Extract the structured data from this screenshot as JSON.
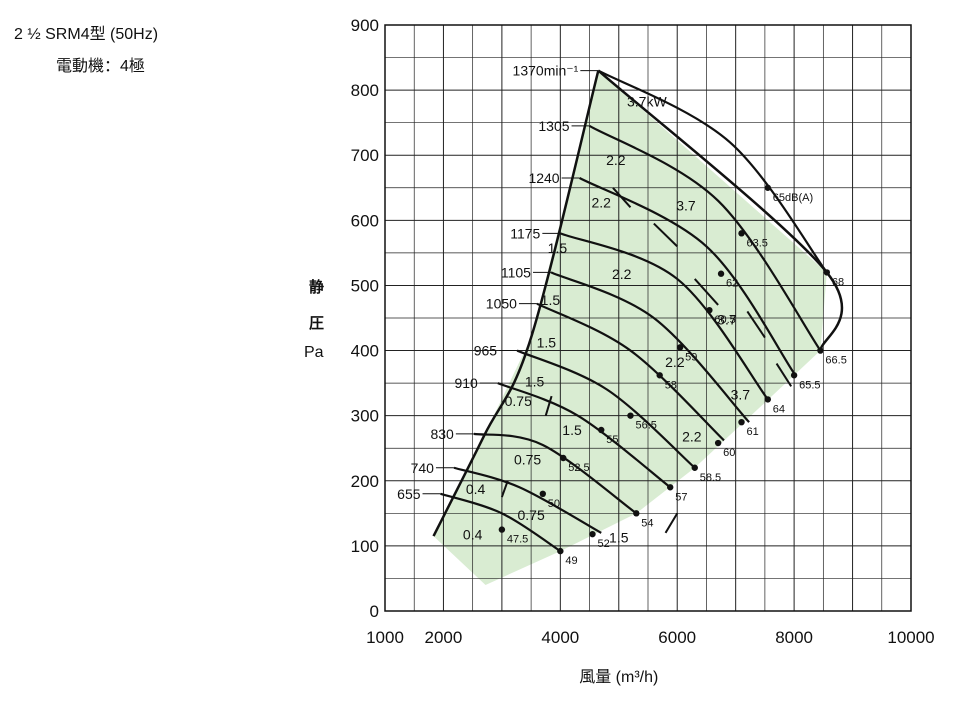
{
  "header": {
    "model": "2 ½ SRM4型 (50Hz)",
    "motor": "電動機：4極"
  },
  "chart_data": {
    "type": "line",
    "xlabel": "風量 (m³/h)",
    "ylabel": [
      "静",
      "圧",
      "Pa"
    ],
    "xlim": [
      1000,
      10000
    ],
    "ylim": [
      0,
      900
    ],
    "xticks": [
      1000,
      2000,
      4000,
      6000,
      8000,
      10000
    ],
    "yticks": [
      0,
      100,
      200,
      300,
      400,
      500,
      600,
      700,
      800,
      900
    ],
    "grid": true,
    "fill_color": "#d9ecd2",
    "curves": [
      {
        "name": "655",
        "points": [
          [
            1950,
            180
          ],
          [
            3000,
            150
          ],
          [
            4000,
            92
          ]
        ]
      },
      {
        "name": "740",
        "points": [
          [
            2180,
            220
          ],
          [
            3300,
            190
          ],
          [
            4700,
            120
          ]
        ]
      },
      {
        "name": "830",
        "points": [
          [
            2520,
            272
          ],
          [
            3700,
            255
          ],
          [
            5300,
            150
          ]
        ]
      },
      {
        "name": "910",
        "points": [
          [
            2930,
            350
          ],
          [
            4300,
            300
          ],
          [
            5880,
            190
          ]
        ]
      },
      {
        "name": "965",
        "points": [
          [
            3260,
            400
          ],
          [
            4800,
            340
          ],
          [
            6300,
            220
          ]
        ]
      },
      {
        "name": "1050",
        "points": [
          [
            3600,
            472
          ],
          [
            5200,
            400
          ],
          [
            6800,
            262
          ]
        ]
      },
      {
        "name": "1105",
        "points": [
          [
            3840,
            520
          ],
          [
            5600,
            450
          ],
          [
            7230,
            290
          ]
        ]
      },
      {
        "name": "1175",
        "points": [
          [
            4000,
            580
          ],
          [
            6000,
            510
          ],
          [
            7550,
            325
          ]
        ]
      },
      {
        "name": "1240",
        "points": [
          [
            4330,
            665
          ],
          [
            6500,
            560
          ],
          [
            8000,
            365
          ]
        ]
      },
      {
        "name": "1305",
        "points": [
          [
            4500,
            745
          ],
          [
            6700,
            630
          ],
          [
            8450,
            400
          ]
        ]
      },
      {
        "name": "1370min⁻¹",
        "points": [
          [
            4650,
            830
          ],
          [
            6900,
            720
          ],
          [
            8560,
            520
          ]
        ]
      }
    ],
    "envelope": {
      "left": [
        [
          1830,
          115
        ],
        [
          2700,
          270
        ],
        [
          3500,
          420
        ],
        [
          4650,
          830
        ]
      ],
      "right": [
        [
          4650,
          830
        ],
        [
          8560,
          520
        ],
        [
          8450,
          400
        ],
        [
          7500,
          320
        ],
        [
          6300,
          220
        ],
        [
          5300,
          150
        ],
        [
          4000,
          92
        ],
        [
          2720,
          40
        ]
      ]
    },
    "power_separators": [
      [
        [
          6000,
          150
        ],
        [
          5800,
          120
        ]
      ],
      [
        [
          3850,
          330
        ],
        [
          3750,
          300
        ]
      ],
      [
        [
          3100,
          200
        ],
        [
          3000,
          175
        ]
      ],
      [
        [
          4900,
          650
        ],
        [
          5200,
          620
        ]
      ],
      [
        [
          5600,
          595
        ],
        [
          6000,
          560
        ]
      ],
      [
        [
          6300,
          510
        ],
        [
          6700,
          470
        ]
      ],
      [
        [
          7200,
          460
        ],
        [
          7500,
          420
        ]
      ],
      [
        [
          7700,
          380
        ],
        [
          7950,
          345
        ]
      ]
    ],
    "power_labels": [
      {
        "text": "3.7kW",
        "x": 5480,
        "y": 775
      },
      {
        "text": "2.2",
        "x": 4950,
        "y": 685
      },
      {
        "text": "2.2",
        "x": 4700,
        "y": 620
      },
      {
        "text": "3.7",
        "x": 6150,
        "y": 615
      },
      {
        "text": "1.5",
        "x": 3950,
        "y": 550
      },
      {
        "text": "2.2",
        "x": 5050,
        "y": 510
      },
      {
        "text": "1.5",
        "x": 3830,
        "y": 470
      },
      {
        "text": "3.7",
        "x": 6850,
        "y": 440
      },
      {
        "text": "1.5",
        "x": 3760,
        "y": 405
      },
      {
        "text": "2.2",
        "x": 5960,
        "y": 375
      },
      {
        "text": "1.5",
        "x": 3560,
        "y": 345
      },
      {
        "text": "3.7",
        "x": 7080,
        "y": 325
      },
      {
        "text": "0.75",
        "x": 3280,
        "y": 315
      },
      {
        "text": "1.5",
        "x": 4200,
        "y": 270
      },
      {
        "text": "2.2",
        "x": 6250,
        "y": 260
      },
      {
        "text": "0.75",
        "x": 3440,
        "y": 225
      },
      {
        "text": "0.4",
        "x": 2550,
        "y": 180
      },
      {
        "text": "0.75",
        "x": 3500,
        "y": 140
      },
      {
        "text": "0.4",
        "x": 2500,
        "y": 110
      },
      {
        "text": "1.5",
        "x": 5000,
        "y": 105
      }
    ],
    "noise_points": [
      {
        "label": "49",
        "x": 4000,
        "y": 92
      },
      {
        "label": "47.5",
        "x": 3000,
        "y": 125
      },
      {
        "label": "52",
        "x": 4550,
        "y": 118
      },
      {
        "label": "50",
        "x": 3700,
        "y": 180
      },
      {
        "label": "54",
        "x": 5300,
        "y": 150
      },
      {
        "label": "52.5",
        "x": 4050,
        "y": 235
      },
      {
        "label": "57",
        "x": 5880,
        "y": 190
      },
      {
        "label": "55",
        "x": 4700,
        "y": 278
      },
      {
        "label": "58.5",
        "x": 6300,
        "y": 220
      },
      {
        "label": "56.5",
        "x": 5200,
        "y": 300
      },
      {
        "label": "60",
        "x": 6700,
        "y": 258
      },
      {
        "label": "58",
        "x": 5700,
        "y": 362
      },
      {
        "label": "61",
        "x": 7100,
        "y": 290
      },
      {
        "label": "59",
        "x": 6050,
        "y": 405
      },
      {
        "label": "64",
        "x": 7550,
        "y": 325
      },
      {
        "label": "60.5",
        "x": 6550,
        "y": 462
      },
      {
        "label": "65.5",
        "x": 8000,
        "y": 362
      },
      {
        "label": "62",
        "x": 6750,
        "y": 518
      },
      {
        "label": "66.5",
        "x": 8450,
        "y": 400
      },
      {
        "label": "63.5",
        "x": 7100,
        "y": 580
      },
      {
        "label": "68",
        "x": 8560,
        "y": 520
      },
      {
        "label": "65dB(A)",
        "x": 7550,
        "y": 650
      }
    ]
  }
}
